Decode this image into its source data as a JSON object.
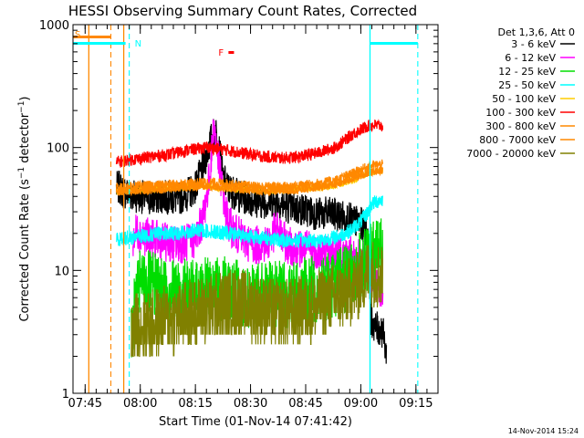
{
  "chart_data": {
    "type": "line",
    "title": "HESSI Observing Summary Count Rates, Corrected",
    "xlabel": "Start Time (01-Nov-14 07:41:42)",
    "ylabel": "Corrected Count Rate (s⁻¹ detector⁻¹)",
    "ylabel_parts": [
      "Corrected Count Rate (s",
      "−1",
      " detector",
      "−1",
      ")"
    ],
    "y_scale": "log",
    "ylim": [
      1,
      1000
    ],
    "y_ticks": [
      {
        "v": 1,
        "label": "1"
      },
      {
        "v": 10,
        "label": "10"
      },
      {
        "v": 100,
        "label": "100"
      },
      {
        "v": 1000,
        "label": "1000"
      }
    ],
    "xlim": [
      "07:41:42",
      "09:21:00"
    ],
    "x_ticks": [
      "07:45",
      "08:00",
      "08:15",
      "08:30",
      "08:45",
      "09:00",
      "09:15"
    ],
    "legend_header": "Det 1,3,6, Att 0",
    "legend_position": "right",
    "series": [
      {
        "name": "3 - 6 keV",
        "color": "#000000",
        "x": [
          "07:53:30",
          "07:54:30",
          "07:55:00",
          "07:56:00",
          "07:58:00",
          "08:00:00",
          "08:03:00",
          "08:06:00",
          "08:10:00",
          "08:13:00",
          "08:15:00",
          "08:17:00",
          "08:19:00",
          "08:20:30",
          "08:21:30",
          "08:22:30",
          "08:24:00",
          "08:27:00",
          "08:30:00",
          "08:33:00",
          "08:36:00",
          "08:39:00",
          "08:42:00",
          "08:45:00",
          "08:48:00",
          "08:51:00",
          "08:54:00",
          "08:57:00",
          "09:00:00",
          "09:02:00",
          "09:02:45",
          "09:04:00",
          "09:06:00",
          "09:07:00"
        ],
        "y": [
          47,
          47,
          44,
          43,
          41,
          40,
          38,
          40,
          38,
          42,
          48,
          68,
          110,
          140,
          95,
          56,
          46,
          40,
          38,
          36,
          37,
          34,
          32,
          31,
          29,
          29,
          28,
          26,
          24,
          21,
          4,
          3.4,
          3.2,
          2.0
        ]
      },
      {
        "name": "6 - 12 keV",
        "color": "#ff00ff",
        "x": [
          "07:58:00",
          "07:59:00",
          "08:01:00",
          "08:04:00",
          "08:07:00",
          "08:10:00",
          "08:13:00",
          "08:15:00",
          "08:17:00",
          "08:19:00",
          "08:20:00",
          "08:21:00",
          "08:22:00",
          "08:23:00",
          "08:24:00",
          "08:26:00",
          "08:29:00",
          "08:32:00",
          "08:35:00",
          "08:37:00",
          "08:40:00",
          "08:43:00",
          "08:46:00",
          "08:49:00",
          "08:52:00",
          "08:55:00",
          "08:58:00",
          "09:01:00",
          "09:02:45",
          "09:04:00",
          "09:06:00"
        ],
        "y": [
          18,
          21,
          19,
          18,
          17,
          16,
          17,
          18,
          26,
          60,
          160,
          90,
          55,
          33,
          24,
          20,
          17,
          16,
          17,
          22,
          16,
          15,
          15,
          14,
          14,
          14,
          13,
          12,
          9,
          8,
          7
        ]
      },
      {
        "name": "12 - 25 keV",
        "color": "#00dd00",
        "x": [
          "07:57:30",
          "07:58:30",
          "08:00:00",
          "08:03:00",
          "08:06:00",
          "08:09:00",
          "08:12:00",
          "08:15:00",
          "08:18:00",
          "08:21:00",
          "08:24:00",
          "08:27:00",
          "08:30:00",
          "08:33:00",
          "08:36:00",
          "08:39:00",
          "08:42:00",
          "08:45:00",
          "08:48:00",
          "08:51:00",
          "08:54:00",
          "08:57:00",
          "09:00:00",
          "09:02:00",
          "09:02:45",
          "09:04:00",
          "09:06:00"
        ],
        "y": [
          2.5,
          5,
          8,
          7.5,
          7,
          6.8,
          6.5,
          6.5,
          6.8,
          7,
          6.8,
          6.5,
          6.3,
          6.2,
          6.3,
          6.3,
          6.5,
          6.8,
          7,
          7.5,
          8,
          9,
          11,
          12,
          13,
          14,
          15
        ]
      },
      {
        "name": "25 - 50 keV",
        "color": "#00ffff",
        "x": [
          "07:53:30",
          "07:57:00",
          "08:00:00",
          "08:03:00",
          "08:06:00",
          "08:09:00",
          "08:12:00",
          "08:15:00",
          "08:18:00",
          "08:21:00",
          "08:24:00",
          "08:27:00",
          "08:30:00",
          "08:33:00",
          "08:36:00",
          "08:39:00",
          "08:42:00",
          "08:45:00",
          "08:48:00",
          "08:51:00",
          "08:54:00",
          "08:57:00",
          "09:00:00",
          "09:02:00",
          "09:02:45",
          "09:04:00",
          "09:06:00"
        ],
        "y": [
          18,
          18.5,
          19,
          19.5,
          20,
          20,
          20.5,
          21,
          21,
          20.5,
          20,
          19.5,
          19,
          18.5,
          18,
          17.5,
          17.5,
          17.5,
          17.5,
          18,
          19,
          21,
          25,
          30,
          34,
          36,
          38
        ]
      },
      {
        "name": "50 - 100 keV",
        "color": "#ffcc00",
        "x": [
          "07:53:30",
          "07:58:00",
          "08:03:00",
          "08:08:00",
          "08:13:00",
          "08:18:00",
          "08:23:00",
          "08:28:00",
          "08:33:00",
          "08:38:00",
          "08:43:00",
          "08:48:00",
          "08:53:00",
          "08:58:00",
          "09:02:00",
          "09:04:00",
          "09:06:00"
        ],
        "y": [
          44,
          45,
          46,
          47,
          48,
          48,
          47,
          46,
          45,
          45,
          46,
          47,
          49,
          55,
          62,
          64,
          65
        ]
      },
      {
        "name": "100 - 300 keV",
        "color": "#ff0000",
        "x": [
          "07:53:30",
          "07:58:00",
          "08:03:00",
          "08:08:00",
          "08:13:00",
          "08:18:00",
          "08:23:00",
          "08:28:00",
          "08:33:00",
          "08:38:00",
          "08:43:00",
          "08:48:00",
          "08:53:00",
          "08:58:00",
          "09:02:00",
          "09:04:00",
          "09:06:00"
        ],
        "y": [
          76,
          80,
          84,
          88,
          95,
          100,
          96,
          90,
          85,
          82,
          84,
          90,
          100,
          130,
          150,
          152,
          150
        ]
      },
      {
        "name": "300 - 800 keV",
        "color": "#ff8800",
        "x": [
          "07:53:30",
          "07:58:00",
          "08:03:00",
          "08:08:00",
          "08:13:00",
          "08:18:00",
          "08:23:00",
          "08:28:00",
          "08:33:00",
          "08:38:00",
          "08:43:00",
          "08:48:00",
          "08:53:00",
          "08:58:00",
          "09:02:00",
          "09:04:00",
          "09:06:00"
        ],
        "y": [
          47,
          48,
          49,
          50,
          51,
          52,
          51,
          49,
          48,
          48,
          49,
          51,
          54,
          62,
          70,
          72,
          73
        ]
      },
      {
        "name": "800 - 7000 keV",
        "color": "#ff8800",
        "x": [
          "07:53:30",
          "07:58:00",
          "08:03:00",
          "08:08:00",
          "08:13:00",
          "08:18:00",
          "08:23:00",
          "08:28:00",
          "08:33:00",
          "08:38:00",
          "08:43:00",
          "08:48:00",
          "08:53:00",
          "08:58:00",
          "09:02:00",
          "09:04:00",
          "09:06:00"
        ],
        "y": [
          43,
          44,
          45,
          46,
          47,
          48,
          47,
          45,
          44,
          44,
          45,
          47,
          50,
          56,
          62,
          64,
          65
        ]
      },
      {
        "name": "7000 - 20000 keV",
        "color": "#808000",
        "x": [
          "07:57:30",
          "07:59:00",
          "08:02:00",
          "08:05:00",
          "08:08:00",
          "08:11:00",
          "08:14:00",
          "08:17:00",
          "08:20:00",
          "08:23:00",
          "08:26:00",
          "08:29:00",
          "08:32:00",
          "08:35:00",
          "08:38:00",
          "08:41:00",
          "08:44:00",
          "08:47:00",
          "08:50:00",
          "08:53:00",
          "08:56:00",
          "08:59:00",
          "09:01:00",
          "09:02:45",
          "09:04:00",
          "09:06:00"
        ],
        "y": [
          3,
          3.5,
          3.6,
          3.8,
          4,
          4.2,
          4.5,
          4.8,
          5,
          5.2,
          5.5,
          5.2,
          5,
          4.6,
          4.5,
          4.5,
          4.8,
          5,
          5.5,
          6,
          6.5,
          7.5,
          9,
          10,
          9.5,
          9
        ]
      }
    ],
    "markers": {
      "solid_vertical": [
        {
          "x": "07:46:00",
          "color": "#ff8800"
        },
        {
          "x": "07:55:30",
          "color": "#ff8800"
        },
        {
          "x": "09:02:30",
          "color": "#00ffff"
        }
      ],
      "dashed_vertical": [
        {
          "x": "07:52:00",
          "color": "#ff8800"
        },
        {
          "x": "07:57:00",
          "color": "#00ffff"
        },
        {
          "x": "09:15:30",
          "color": "#00ffff"
        }
      ],
      "night_bars": [
        {
          "x0": "07:41:42",
          "x1": "07:56:00"
        },
        {
          "x0": "09:02:30",
          "x1": "09:15:30"
        }
      ],
      "saa_bar": {
        "x0": "07:41:42",
        "x1": "07:52:00"
      },
      "flare_bar": {
        "x0": "08:24:00",
        "x1": "08:25:30"
      }
    },
    "labels": {
      "saa": "S",
      "night": "N",
      "flare": "F"
    }
  },
  "footer": {
    "timestamp": "14-Nov-2014 15:24"
  }
}
